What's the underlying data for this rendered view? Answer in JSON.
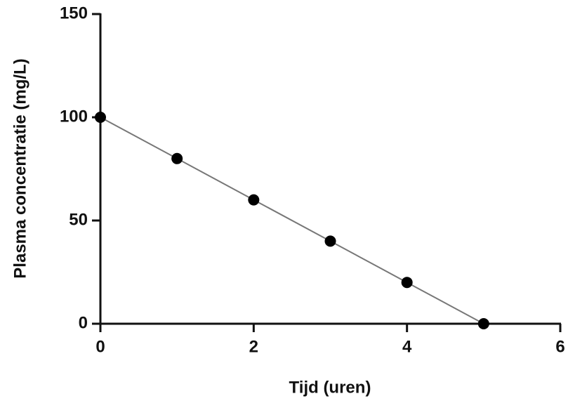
{
  "chart_data": {
    "type": "line",
    "x_label": "Tijd (uren)",
    "y_label": "Plasma concentratie (mg/L)",
    "series": [
      {
        "x": [
          0,
          1,
          2,
          3,
          4,
          5
        ],
        "values": [
          100,
          80,
          60,
          40,
          20,
          0
        ],
        "color": "#000000",
        "line_color": "#777777"
      }
    ],
    "xlim": [
      0,
      6
    ],
    "xticks": [
      0,
      2,
      4,
      6
    ],
    "ylim": [
      0,
      150
    ],
    "yticks": [
      0,
      50,
      100,
      150
    ],
    "grid": false
  }
}
